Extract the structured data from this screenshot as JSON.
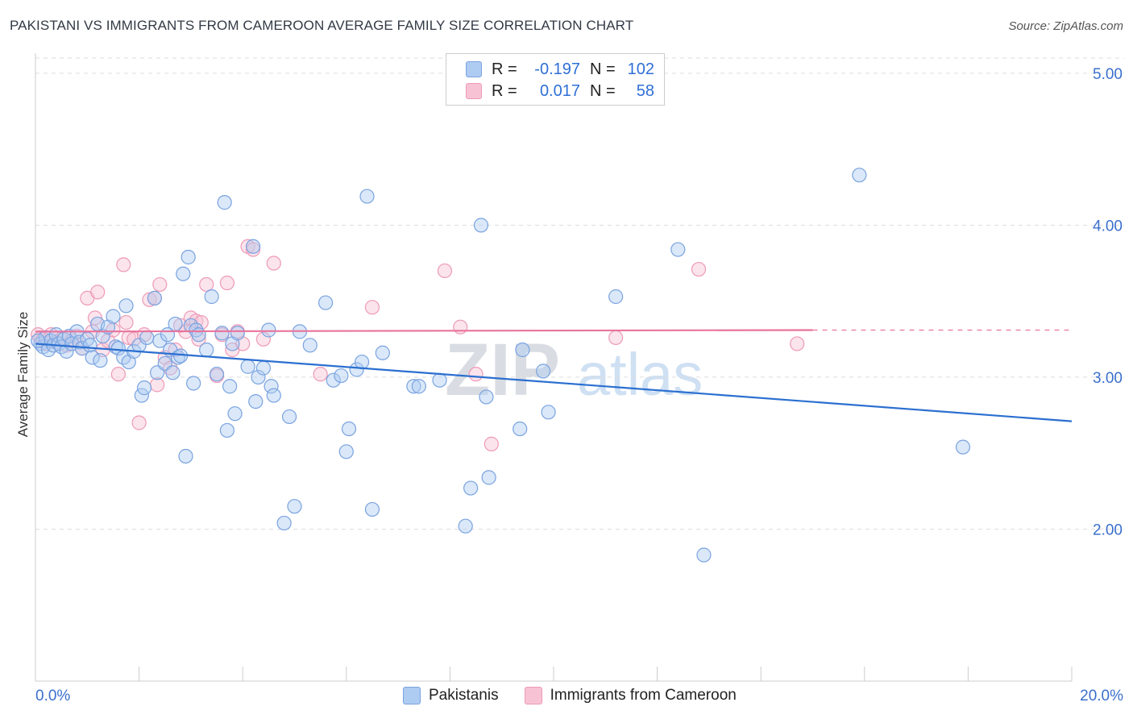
{
  "header": {
    "title": "PAKISTANI VS IMMIGRANTS FROM CAMEROON AVERAGE FAMILY SIZE CORRELATION CHART",
    "source": "Source: ZipAtlas.com"
  },
  "legend_top": {
    "rows": [
      {
        "r_label": "R =",
        "r_value": "-0.197",
        "n_label": "N =",
        "n_value": "102"
      },
      {
        "r_label": "R =",
        "r_value": "0.017",
        "n_label": "N =",
        "n_value": "58"
      }
    ]
  },
  "legend_bottom": {
    "items": [
      {
        "label": "Pakistanis"
      },
      {
        "label": "Immigrants from Cameroon"
      }
    ]
  },
  "watermark": {
    "zip": "ZIP",
    "atlas": "atlas"
  },
  "colors": {
    "blue_fill": "#aecbf2",
    "blue_stroke": "#7aa3e0",
    "blue_line": "#2b6fd0",
    "pink_fill": "#f7c3d4",
    "pink_stroke": "#ee9ab6",
    "pink_line": "#e8749c",
    "axis_text": "#3a6fcc",
    "grid": "#dddddd"
  },
  "chart_data": {
    "type": "scatter",
    "title": "PAKISTANI VS IMMIGRANTS FROM CAMEROON AVERAGE FAMILY SIZE CORRELATION CHART",
    "xlabel": "",
    "ylabel": "Average Family Size",
    "xlim": [
      0,
      20
    ],
    "ylim": [
      1.0,
      5.1
    ],
    "x_tick_labels": [
      "0.0%",
      "20.0%"
    ],
    "y_ticks": [
      2.0,
      3.0,
      4.0,
      5.0
    ],
    "y_tick_labels": [
      "2.00",
      "3.00",
      "4.00",
      "5.00"
    ],
    "series": [
      {
        "name": "Pakistanis",
        "r": -0.197,
        "n": 102,
        "trend": {
          "x0": 0,
          "y0": 3.22,
          "x1": 20,
          "y1": 2.71
        },
        "points": [
          [
            0.1,
            3.22
          ],
          [
            0.15,
            3.2
          ],
          [
            0.2,
            3.26
          ],
          [
            0.25,
            3.18
          ],
          [
            0.3,
            3.24
          ],
          [
            0.35,
            3.21
          ],
          [
            0.4,
            3.28
          ],
          [
            0.45,
            3.22
          ],
          [
            0.5,
            3.2
          ],
          [
            0.55,
            3.25
          ],
          [
            0.6,
            3.17
          ],
          [
            0.65,
            3.27
          ],
          [
            0.7,
            3.22
          ],
          [
            0.8,
            3.3
          ],
          [
            0.85,
            3.23
          ],
          [
            0.9,
            3.19
          ],
          [
            1.0,
            3.25
          ],
          [
            1.05,
            3.21
          ],
          [
            1.1,
            3.13
          ],
          [
            1.2,
            3.35
          ],
          [
            1.25,
            3.11
          ],
          [
            1.3,
            3.27
          ],
          [
            1.4,
            3.33
          ],
          [
            1.5,
            3.4
          ],
          [
            1.55,
            3.2
          ],
          [
            1.6,
            3.19
          ],
          [
            1.7,
            3.13
          ],
          [
            1.75,
            3.47
          ],
          [
            1.8,
            3.1
          ],
          [
            1.9,
            3.17
          ],
          [
            2.0,
            3.21
          ],
          [
            2.05,
            2.88
          ],
          [
            2.1,
            2.93
          ],
          [
            2.15,
            3.26
          ],
          [
            2.3,
            3.52
          ],
          [
            2.35,
            3.03
          ],
          [
            2.4,
            3.24
          ],
          [
            2.5,
            3.09
          ],
          [
            2.55,
            3.28
          ],
          [
            2.6,
            3.18
          ],
          [
            2.65,
            3.03
          ],
          [
            2.7,
            3.35
          ],
          [
            2.75,
            3.13
          ],
          [
            2.8,
            3.14
          ],
          [
            2.85,
            3.68
          ],
          [
            2.9,
            2.48
          ],
          [
            2.95,
            3.79
          ],
          [
            3.0,
            3.34
          ],
          [
            3.05,
            2.96
          ],
          [
            3.1,
            3.31
          ],
          [
            3.15,
            3.28
          ],
          [
            3.3,
            3.18
          ],
          [
            3.4,
            3.53
          ],
          [
            3.5,
            3.02
          ],
          [
            3.6,
            3.29
          ],
          [
            3.65,
            4.15
          ],
          [
            3.7,
            2.65
          ],
          [
            3.75,
            2.94
          ],
          [
            3.8,
            3.22
          ],
          [
            3.85,
            2.76
          ],
          [
            3.9,
            3.29
          ],
          [
            4.1,
            3.07
          ],
          [
            4.2,
            3.86
          ],
          [
            4.25,
            2.84
          ],
          [
            4.3,
            3.0
          ],
          [
            4.4,
            3.06
          ],
          [
            4.5,
            3.31
          ],
          [
            4.55,
            2.94
          ],
          [
            4.6,
            2.88
          ],
          [
            4.8,
            2.04
          ],
          [
            4.9,
            2.74
          ],
          [
            5.0,
            2.15
          ],
          [
            5.1,
            3.3
          ],
          [
            5.3,
            3.21
          ],
          [
            5.6,
            3.49
          ],
          [
            5.75,
            2.98
          ],
          [
            5.9,
            3.01
          ],
          [
            6.05,
            2.66
          ],
          [
            6.0,
            2.51
          ],
          [
            6.2,
            3.05
          ],
          [
            6.3,
            3.1
          ],
          [
            6.4,
            4.19
          ],
          [
            6.5,
            2.13
          ],
          [
            6.7,
            3.16
          ],
          [
            7.3,
            2.94
          ],
          [
            7.4,
            2.94
          ],
          [
            7.8,
            2.98
          ],
          [
            8.3,
            2.02
          ],
          [
            8.4,
            2.27
          ],
          [
            8.6,
            4.0
          ],
          [
            8.7,
            2.87
          ],
          [
            8.75,
            2.34
          ],
          [
            9.35,
            2.66
          ],
          [
            9.4,
            3.18
          ],
          [
            9.8,
            3.04
          ],
          [
            9.9,
            2.77
          ],
          [
            11.2,
            3.53
          ],
          [
            12.4,
            3.84
          ],
          [
            12.9,
            1.83
          ],
          [
            15.9,
            4.33
          ],
          [
            17.9,
            2.54
          ],
          [
            0.05,
            3.24
          ]
        ]
      },
      {
        "name": "Immigrants from Cameroon",
        "r": 0.017,
        "n": 58,
        "trend": {
          "x0": 0,
          "y0": 3.3,
          "x1": 15.0,
          "y1": 3.31
        },
        "trend_dashed_to": {
          "x": 20,
          "y": 3.31
        },
        "points": [
          [
            0.1,
            3.26
          ],
          [
            0.2,
            3.22
          ],
          [
            0.3,
            3.28
          ],
          [
            0.4,
            3.23
          ],
          [
            0.5,
            3.25
          ],
          [
            0.6,
            3.21
          ],
          [
            0.7,
            3.24
          ],
          [
            0.8,
            3.27
          ],
          [
            0.9,
            3.19
          ],
          [
            1.0,
            3.52
          ],
          [
            1.1,
            3.3
          ],
          [
            1.15,
            3.39
          ],
          [
            1.2,
            3.56
          ],
          [
            1.3,
            3.18
          ],
          [
            1.4,
            3.24
          ],
          [
            1.5,
            3.31
          ],
          [
            1.6,
            3.02
          ],
          [
            1.7,
            3.74
          ],
          [
            1.75,
            3.36
          ],
          [
            1.8,
            3.26
          ],
          [
            1.9,
            3.25
          ],
          [
            2.0,
            2.7
          ],
          [
            2.1,
            3.28
          ],
          [
            2.2,
            3.51
          ],
          [
            2.3,
            3.52
          ],
          [
            2.35,
            2.95
          ],
          [
            2.4,
            3.61
          ],
          [
            2.5,
            3.13
          ],
          [
            2.6,
            3.06
          ],
          [
            2.7,
            3.18
          ],
          [
            2.8,
            3.34
          ],
          [
            2.9,
            3.3
          ],
          [
            3.0,
            3.39
          ],
          [
            3.1,
            3.37
          ],
          [
            3.15,
            3.25
          ],
          [
            3.2,
            3.36
          ],
          [
            3.3,
            3.61
          ],
          [
            3.5,
            3.01
          ],
          [
            3.6,
            3.28
          ],
          [
            3.7,
            3.62
          ],
          [
            3.8,
            3.18
          ],
          [
            3.9,
            3.3
          ],
          [
            4.0,
            3.22
          ],
          [
            4.1,
            3.86
          ],
          [
            4.2,
            3.84
          ],
          [
            4.4,
            3.25
          ],
          [
            4.6,
            3.75
          ],
          [
            5.5,
            3.02
          ],
          [
            6.5,
            3.46
          ],
          [
            7.9,
            3.7
          ],
          [
            8.2,
            3.33
          ],
          [
            8.5,
            3.02
          ],
          [
            8.8,
            2.56
          ],
          [
            12.8,
            3.71
          ],
          [
            11.2,
            3.26
          ],
          [
            14.7,
            3.22
          ],
          [
            0.05,
            3.28
          ],
          [
            0.15,
            3.25
          ]
        ]
      }
    ]
  }
}
